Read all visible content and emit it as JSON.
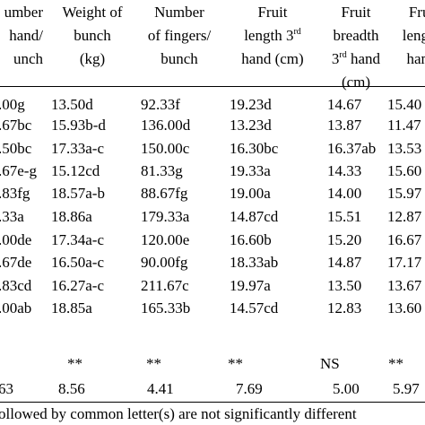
{
  "table": {
    "header": [
      [
        "umber",
        "hand/",
        "unch"
      ],
      [
        "Weight of",
        "bunch",
        "(kg)"
      ],
      [
        "Number",
        "of fingers/",
        "bunch"
      ],
      [
        "Fruit",
        [
          "length 3",
          "rd",
          ""
        ],
        "hand (cm)"
      ],
      [
        "Fruit",
        "breadth",
        [
          "3",
          "rd",
          " hand"
        ],
        "(cm)"
      ],
      [
        "Frui",
        "length",
        "hand"
      ]
    ],
    "rows": [
      [
        ".00g",
        "13.50d",
        "92.33f",
        "19.23d",
        "14.67",
        "15.40"
      ],
      [
        ".67bc",
        "15.93b-d",
        "136.00d",
        "13.23d",
        "13.87",
        "11.47"
      ],
      [
        ".50bc",
        "17.33a-c",
        "150.00c",
        "16.30bc",
        "16.37ab",
        "13.53"
      ],
      [
        ".67e-g",
        "15.12cd",
        "81.33g",
        "19.33a",
        "14.33",
        "15.60"
      ],
      [
        ".83fg",
        "18.57a-b",
        "88.67fg",
        "19.00a",
        "14.00",
        "15.97"
      ],
      [
        ".33a",
        "18.86a",
        "179.33a",
        "14.87cd",
        "15.51",
        "12.87"
      ],
      [
        ".00de",
        "17.34a-c",
        "120.00e",
        "16.60b",
        "15.20",
        "16.67"
      ],
      [
        ".67de",
        "16.50a-c",
        "90.00fg",
        "18.33ab",
        "14.87",
        "17.17"
      ],
      [
        ".83cd",
        "16.27a-c",
        "211.67c",
        "19.97a",
        "13.50",
        "13.67"
      ],
      [
        ".00ab",
        "18.85a",
        "165.33b",
        "14.57cd",
        "12.83",
        "13.60"
      ]
    ],
    "significance": [
      "**",
      "**",
      "**",
      "NS",
      "**"
    ],
    "cv": [
      "63",
      "8.56",
      "4.41",
      "7.69",
      "5.00",
      "5.97"
    ],
    "footnote": "ollowed by common letter(s) are not significantly different"
  }
}
